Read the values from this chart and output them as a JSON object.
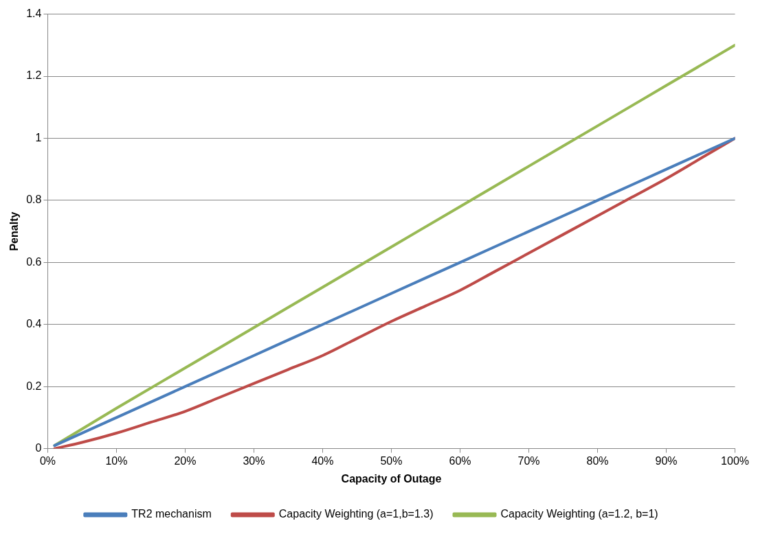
{
  "chart_data": {
    "type": "line",
    "xlabel": "Capacity of Outage",
    "ylabel": "Penalty",
    "x": [
      1,
      10,
      20,
      30,
      40,
      50,
      60,
      70,
      80,
      90,
      100
    ],
    "series": [
      {
        "name": "TR2 mechanism",
        "color": "#4a7ebb",
        "values": [
          0.01,
          0.1,
          0.2,
          0.3,
          0.4,
          0.5,
          0.6,
          0.7,
          0.8,
          0.9,
          1
        ]
      },
      {
        "name": "Capacity Weighting (a=1,b=1.3)",
        "color": "#be4b48",
        "x": [
          1,
          5,
          10,
          15,
          20,
          25,
          30,
          35,
          40,
          45,
          50,
          55,
          60,
          65,
          70,
          75,
          80,
          85,
          90,
          95,
          100
        ],
        "values": [
          0.0,
          0.02,
          0.05,
          0.085,
          0.12,
          0.165,
          0.21,
          0.255,
          0.3,
          0.355,
          0.41,
          0.46,
          0.51,
          0.57,
          0.63,
          0.69,
          0.75,
          0.81,
          0.87,
          0.935,
          1
        ]
      },
      {
        "name": "Capacity Weighting (a=1.2, b=1)",
        "color": "#98b954",
        "values": [
          0.01,
          0.13,
          0.26,
          0.39,
          0.52,
          0.65,
          0.78,
          0.91,
          1.04,
          1.17,
          1.3
        ]
      }
    ],
    "xlim": [
      0,
      100
    ],
    "xticks": [
      {
        "value": 0,
        "label": "0%"
      },
      {
        "value": 10,
        "label": "10%"
      },
      {
        "value": 20,
        "label": "20%"
      },
      {
        "value": 30,
        "label": "30%"
      },
      {
        "value": 40,
        "label": "40%"
      },
      {
        "value": 50,
        "label": "50%"
      },
      {
        "value": 60,
        "label": "60%"
      },
      {
        "value": 70,
        "label": "70%"
      },
      {
        "value": 80,
        "label": "80%"
      },
      {
        "value": 90,
        "label": "90%"
      },
      {
        "value": 100,
        "label": "100%"
      }
    ],
    "ylim": [
      0,
      1.4
    ],
    "yticks": [
      0,
      0.2,
      0.4,
      0.6,
      0.8,
      1,
      1.2,
      1.4
    ],
    "grid": "y",
    "legend": "bottom",
    "marker": "none",
    "line_style": "solid"
  }
}
